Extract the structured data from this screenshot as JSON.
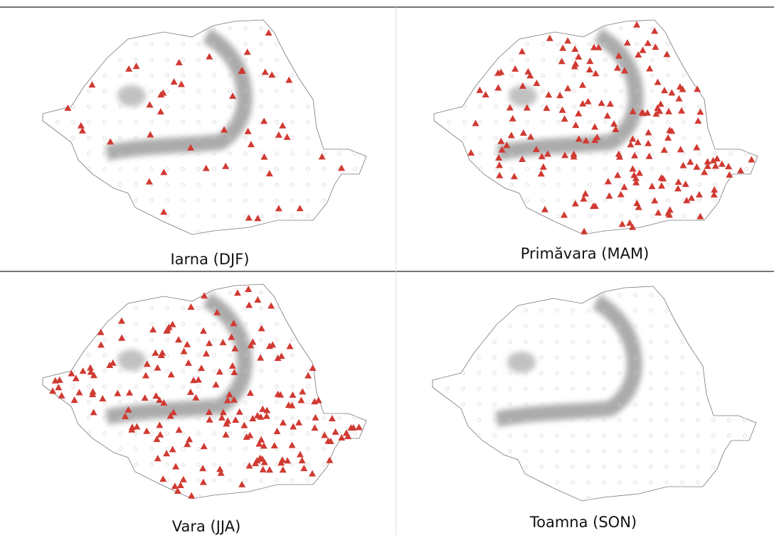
{
  "panels": [
    {
      "caption": "Iarna (DJF)"
    },
    {
      "caption": "Primăvara (MAM)"
    },
    {
      "caption": "Vara (JJA)"
    },
    {
      "caption": "Toamna (SON)"
    }
  ]
}
